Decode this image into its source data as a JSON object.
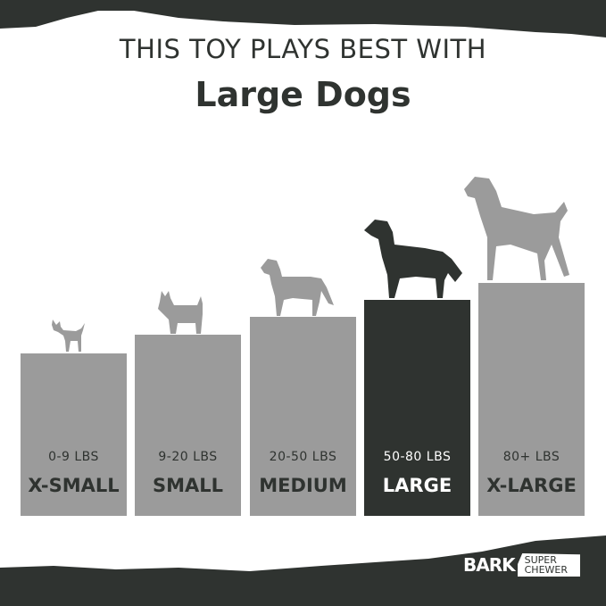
{
  "header": {
    "line1": "THIS TOY PLAYS BEST WITH",
    "line2": "Large Dogs"
  },
  "colors": {
    "dark": "#2f3330",
    "gray": "#9b9b9b",
    "highlight_bar": "#2f3330"
  },
  "sizes": [
    {
      "weight": "0-9 LBS",
      "label": "X-SMALL",
      "icon": "chihuahua-silhouette-icon",
      "active": false
    },
    {
      "weight": "9-20 LBS",
      "label": "SMALL",
      "icon": "terrier-silhouette-icon",
      "active": false
    },
    {
      "weight": "20-50 LBS",
      "label": "MEDIUM",
      "icon": "labrador-silhouette-icon",
      "active": false
    },
    {
      "weight": "50-80 LBS",
      "label": "LARGE",
      "icon": "retriever-silhouette-icon",
      "active": true
    },
    {
      "weight": "80+ LBS",
      "label": "X-LARGE",
      "icon": "great-dane-silhouette-icon",
      "active": false
    }
  ],
  "logo": {
    "brand": "BARK",
    "line1": "SUPER",
    "line2": "CHEWER"
  }
}
